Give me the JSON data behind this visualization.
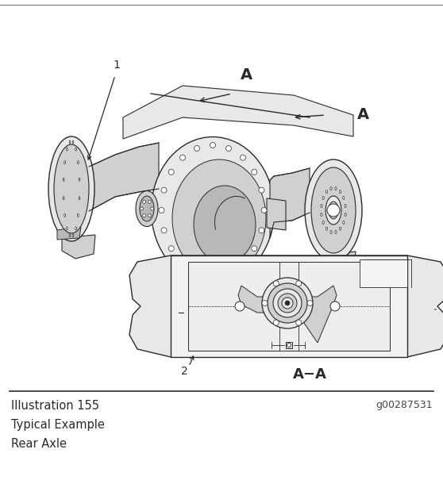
{
  "illustration_label": "Illustration 155",
  "illustration_id": "g00287531",
  "caption_line1": "Typical Example",
  "caption_line2": "Rear Axle",
  "bg_color": "#ffffff",
  "lc": "#2a2a2a",
  "fc_light": "#e8e8e8",
  "fc_mid": "#d0d0d0",
  "fc_dark": "#b8b8b8",
  "fc_white": "#ffffff",
  "fig_width": 5.58,
  "fig_height": 6.05,
  "dpi": 100
}
